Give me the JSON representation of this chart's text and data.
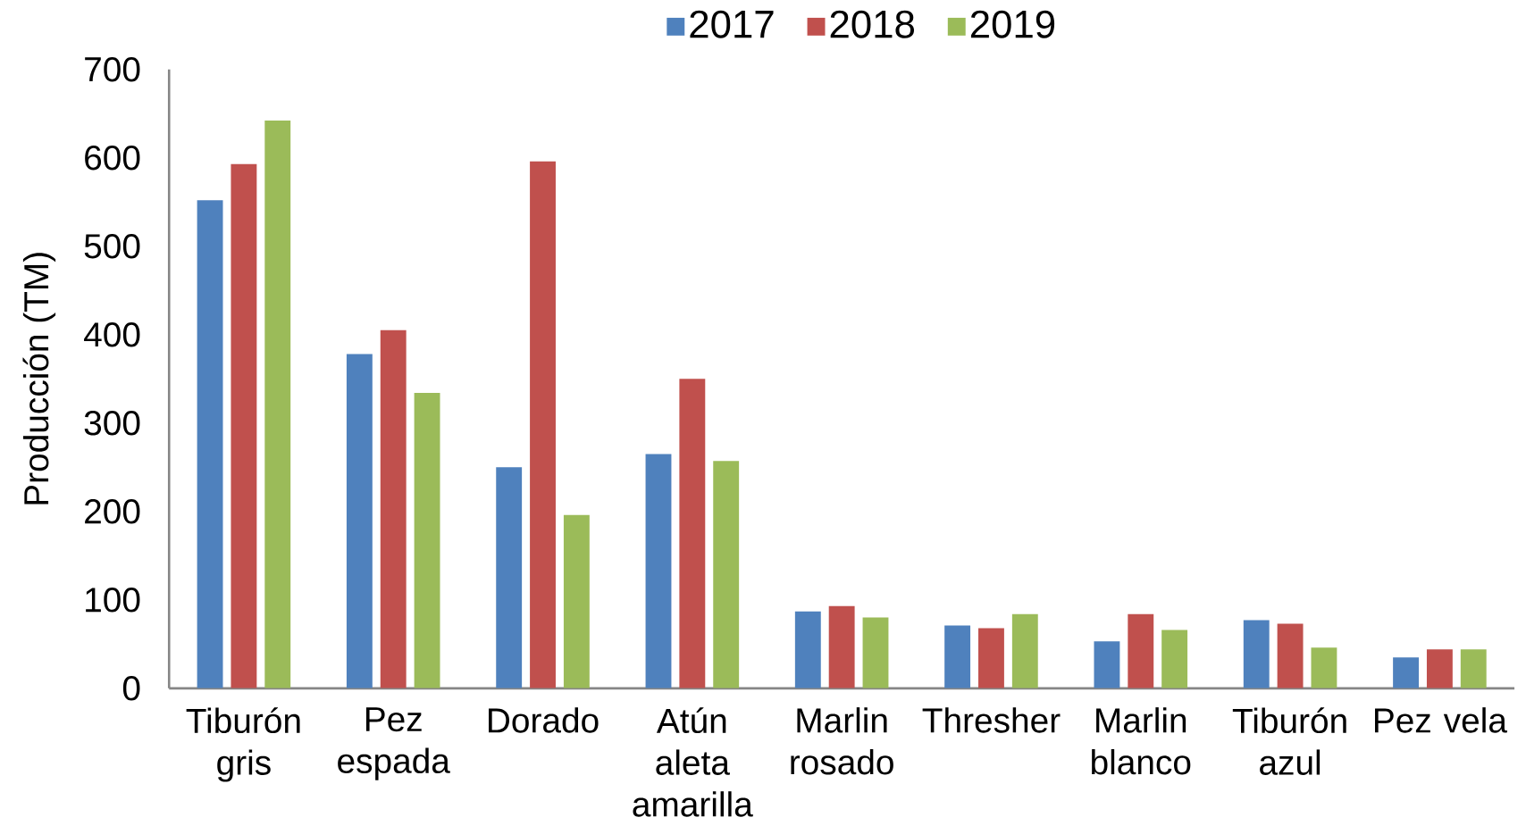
{
  "chart_data": {
    "type": "bar",
    "ylabel": "Producción (TM)",
    "categories": [
      "Tiburón gris",
      "Pez espada",
      "Dorado",
      "Atún aleta amarilla",
      "Marlin rosado",
      "Thresher",
      "Marlin blanco",
      "Tiburón azul",
      "Pez vela"
    ],
    "series": [
      {
        "name": "2017",
        "color": "#4f81bd",
        "values": [
          552,
          378,
          250,
          265,
          87,
          71,
          53,
          77,
          35
        ]
      },
      {
        "name": "2018",
        "color": "#c0504d",
        "values": [
          593,
          405,
          596,
          350,
          93,
          68,
          84,
          73,
          44
        ]
      },
      {
        "name": "2019",
        "color": "#9bbb59",
        "values": [
          642,
          334,
          196,
          257,
          80,
          84,
          66,
          46,
          44
        ]
      }
    ],
    "ylim": [
      0,
      700
    ],
    "yticks": [
      0,
      100,
      200,
      300,
      400,
      500,
      600,
      700
    ],
    "legend": "top"
  }
}
